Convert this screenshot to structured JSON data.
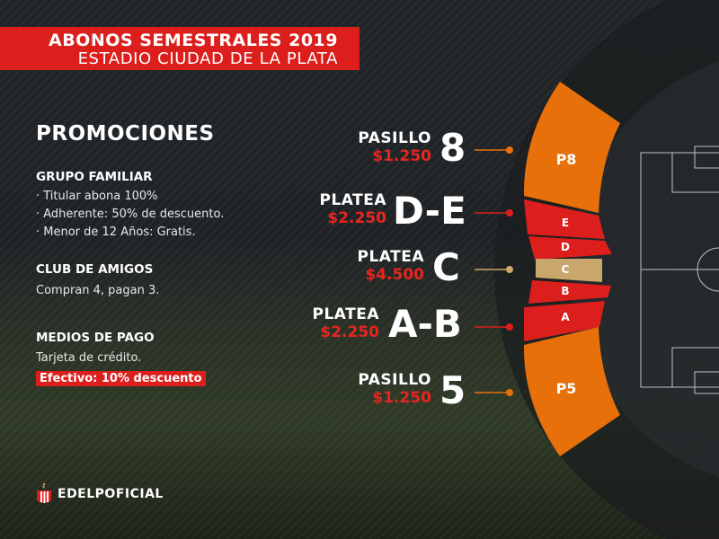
{
  "header": {
    "title": "ABONOS SEMESTRALES 2019",
    "subtitle": "ESTADIO CIUDAD DE LA PLATA"
  },
  "promotions": {
    "title": "PROMOCIONES",
    "groups": [
      {
        "title": "GRUPO FAMILIAR",
        "lines": [
          "· Titular abona 100%",
          "· Adherente: 50% de descuento.",
          "· Menor de 12 Años: Gratis."
        ]
      },
      {
        "title": "CLUB DE AMIGOS",
        "lines": [
          "Compran 4, pagan 3."
        ]
      },
      {
        "title": "MEDIOS DE PAGO",
        "lines": [
          "Tarjeta de crédito."
        ],
        "highlight": "Efectivo: 10% descuento"
      }
    ]
  },
  "sectors": [
    {
      "type": "PASILLO",
      "price": "$1.250",
      "code": "8",
      "map_label": "P8",
      "color": "#e8700a"
    },
    {
      "type": "PLATEA",
      "price": "$2.250",
      "code": "D-E",
      "map_label": "E",
      "map_label2": "D",
      "color": "#dc1f1c"
    },
    {
      "type": "PLATEA",
      "price": "$4.500",
      "code": "C",
      "map_label": "C",
      "color": "#c9a66b"
    },
    {
      "type": "PLATEA",
      "price": "$2.250",
      "code": "A-B",
      "map_label": "B",
      "map_label2": "A",
      "color": "#dc1f1c"
    },
    {
      "type": "PASILLO",
      "price": "$1.250",
      "code": "5",
      "map_label": "P5",
      "color": "#e8700a"
    }
  ],
  "footer": {
    "brand": "EDELPOFICIAL"
  }
}
